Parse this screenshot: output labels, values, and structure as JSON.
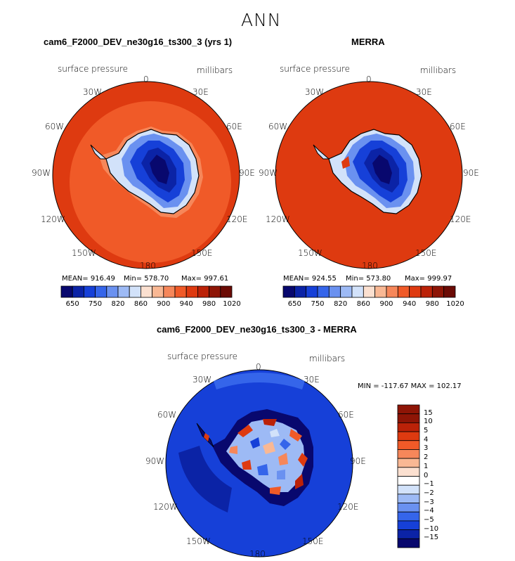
{
  "page_title": "ANN",
  "panels": [
    {
      "title": "cam6_F2000_DEV_ne30g16_ts300_3 (yrs 1)",
      "variable": "surface pressure",
      "units": "millibars",
      "lon_labels": [
        "0",
        "30E",
        "60E",
        "90E",
        "120E",
        "150E",
        "180",
        "150W",
        "120W",
        "90W",
        "60W",
        "30W"
      ],
      "stats": {
        "mean": "MEAN= 916.49",
        "min": "Min= 578.70",
        "max": "Max= 997.61"
      },
      "colorbar_ticks": [
        "650",
        "750",
        "820",
        "860",
        "900",
        "940",
        "980",
        "1020"
      ]
    },
    {
      "title": "MERRA",
      "variable": "surface pressure",
      "units": "millibars",
      "lon_labels": [
        "0",
        "30E",
        "60E",
        "90E",
        "120E",
        "150E",
        "180",
        "150W",
        "120W",
        "90W",
        "60W",
        "30W"
      ],
      "stats": {
        "mean": "MEAN= 924.55",
        "min": "Min= 573.80",
        "max": "Max= 999.97"
      },
      "colorbar_ticks": [
        "650",
        "750",
        "820",
        "860",
        "900",
        "940",
        "980",
        "1020"
      ]
    },
    {
      "title": "cam6_F2000_DEV_ne30g16_ts300_3 - MERRA",
      "variable": "surface pressure",
      "units": "millibars",
      "lon_labels": [
        "0",
        "30E",
        "60E",
        "90E",
        "120E",
        "150E",
        "180",
        "150W",
        "120W",
        "90W",
        "60W",
        "30W"
      ],
      "stats": {
        "minmax": "MIN = -117.67 MAX = 102.17"
      },
      "colorbar_ticks": [
        "15",
        "10",
        "5",
        "4",
        "3",
        "2",
        "1",
        "0",
        "-1",
        "-2",
        "-3",
        "-4",
        "-5",
        "-10",
        "-15"
      ]
    }
  ],
  "colors": {
    "abs_palette": [
      "#08086e",
      "#0b23a6",
      "#1640d8",
      "#3565ea",
      "#6a91f0",
      "#9dbaf5",
      "#d2e2fa",
      "#fbe0d0",
      "#f9b894",
      "#f6875a",
      "#f05a28",
      "#de3a10",
      "#bb2208",
      "#8e1506",
      "#6b0b05"
    ],
    "diff_palette": [
      "#8e1506",
      "#bb2208",
      "#de3a10",
      "#f05a28",
      "#f6875a",
      "#f9b894",
      "#fbe0d0",
      "#ffffff",
      "#d2e2fa",
      "#9dbaf5",
      "#6a91f0",
      "#3565ea",
      "#1640d8",
      "#0b23a6",
      "#08086e"
    ],
    "ocean_model": "#f05a28",
    "ocean_model_outer": "#de3a10",
    "ocean_merra": "#de3a10",
    "diff_ocean": "#1640d8",
    "diff_ocean_light": "#3565ea",
    "diff_land": "#08086e"
  }
}
